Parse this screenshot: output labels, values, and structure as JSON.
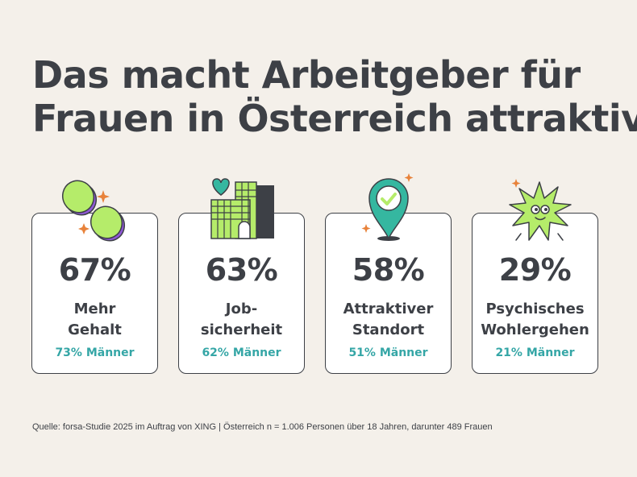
{
  "title_lines": [
    "Das macht Arbeitgeber für",
    "Frauen in Österreich attraktiv"
  ],
  "cards": [
    {
      "percent": "67%",
      "label_lines": [
        "Mehr",
        "Gehalt"
      ],
      "men": "73% Männer",
      "icon": "coins-icon"
    },
    {
      "percent": "63%",
      "label_lines": [
        "Job-",
        "sicherheit"
      ],
      "men": "62% Männer",
      "icon": "office-building-heart-icon"
    },
    {
      "percent": "58%",
      "label_lines": [
        "Attraktiver",
        "Standort"
      ],
      "men": "51% Männer",
      "icon": "location-pin-check-icon"
    },
    {
      "percent": "29%",
      "label_lines": [
        "Psychisches",
        "Wohlergehen"
      ],
      "men": "21% Männer",
      "icon": "happy-star-icon"
    }
  ],
  "source": "Quelle: forsa-Studie 2025 im Auftrag von XING | Österreich n = 1.006 Personen über 18 Jahren, darunter 489 Frauen",
  "colors": {
    "background": "#f4f0ea",
    "text": "#3d4046",
    "men_accent": "#35a6a6",
    "icon_green": "#b5ec6a",
    "pin_teal": "#35b7a0",
    "coin_purple": "#8f57d6"
  }
}
